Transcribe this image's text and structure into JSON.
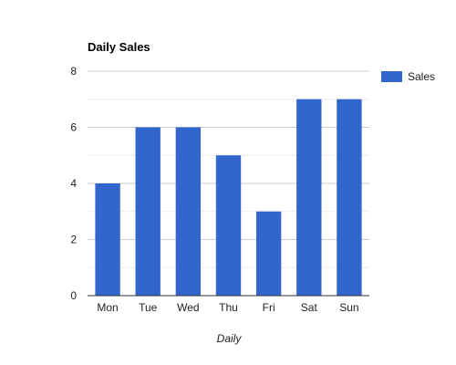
{
  "chart_data": {
    "type": "bar",
    "title": "Daily Sales",
    "xlabel": "Daily",
    "ylabel": "",
    "categories": [
      "Mon",
      "Tue",
      "Wed",
      "Thu",
      "Fri",
      "Sat",
      "Sun"
    ],
    "series": [
      {
        "name": "Sales",
        "values": [
          4,
          6,
          6,
          5,
          3,
          7,
          7
        ],
        "color": "#3366cc"
      }
    ],
    "ylim": [
      0,
      8
    ],
    "yticks": [
      0,
      2,
      4,
      6,
      8
    ],
    "grid": true,
    "legend": "right"
  }
}
